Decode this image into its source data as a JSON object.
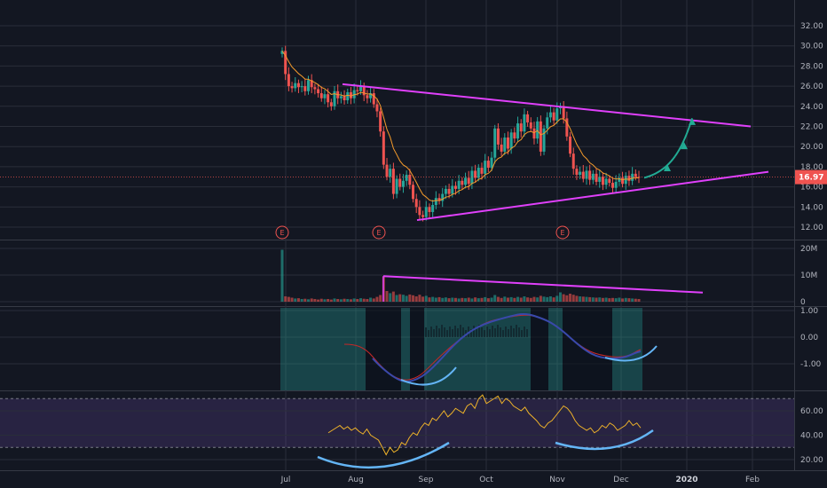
{
  "chart_data": {
    "type": "candlestick",
    "x_ticks": [
      "Jul",
      "Aug",
      "Sep",
      "Oct",
      "Nov",
      "Dec",
      "2020",
      "Feb"
    ],
    "price_panel": {
      "ylim": [
        11,
        32
      ],
      "y_ticks": [
        "32.00",
        "30.00",
        "28.00",
        "26.00",
        "24.00",
        "22.00",
        "20.00",
        "18.00",
        "16.00",
        "14.00",
        "12.00"
      ],
      "last_price": "16.97",
      "earnings_markers": [
        {
          "label": "E",
          "month": "Jul"
        },
        {
          "label": "E",
          "month": "Aug"
        },
        {
          "label": "E",
          "month": "Nov"
        }
      ],
      "closes": [
        29.5,
        27.2,
        26.0,
        25.8,
        26.3,
        25.9,
        26.0,
        25.5,
        26.6,
        25.9,
        25.7,
        25.3,
        24.8,
        25.2,
        24.4,
        24.0,
        25.5,
        24.8,
        25.0,
        24.6,
        25.4,
        24.8,
        25.6,
        25.5,
        26.0,
        25.1,
        24.8,
        25.3,
        24.2,
        23.5,
        21.5,
        18.2,
        17.0,
        17.8,
        15.3,
        16.8,
        16.0,
        16.6,
        17.2,
        16.2,
        14.8,
        14.0,
        13.2,
        13.0,
        14.0,
        13.5,
        14.2,
        14.9,
        14.6,
        15.3,
        15.8,
        15.3,
        16.1,
        15.8,
        16.6,
        16.2,
        16.9,
        16.3,
        17.6,
        16.9,
        17.9,
        17.3,
        18.6,
        17.9,
        18.9,
        21.8,
        20.2,
        19.5,
        20.9,
        19.8,
        21.4,
        20.8,
        22.3,
        21.5,
        23.2,
        22.4,
        21.8,
        20.8,
        22.5,
        19.5,
        21.8,
        22.9,
        23.4,
        22.6,
        23.8,
        24.0,
        22.8,
        21.0,
        19.3,
        17.8,
        17.2,
        17.5,
        16.8,
        17.6,
        16.7,
        17.3,
        16.5,
        17.0,
        16.2,
        16.8,
        16.4,
        15.9,
        16.5,
        16.9,
        16.3,
        17.1,
        16.6,
        17.3,
        17.0,
        16.97
      ],
      "series": [
        {
          "name": "EMA"
        }
      ]
    },
    "volume_panel": {
      "y_ticks": [
        "20M",
        "10M",
        "0"
      ],
      "values": [
        19.5,
        2.0,
        1.8,
        1.5,
        1.2,
        1.3,
        1.0,
        1.1,
        0.9,
        1.2,
        1.0,
        0.8,
        1.1,
        0.9,
        1.0,
        0.8,
        1.2,
        1.0,
        0.9,
        1.1,
        1.0,
        0.9,
        1.2,
        1.0,
        1.3,
        1.1,
        1.0,
        1.5,
        1.2,
        1.8,
        2.5,
        9.5,
        4.0,
        3.2,
        3.8,
        2.5,
        2.8,
        2.6,
        2.2,
        2.7,
        2.4,
        2.0,
        2.6,
        1.9,
        2.2,
        1.6,
        1.8,
        1.5,
        1.7,
        1.4,
        1.6,
        1.3,
        1.5,
        1.4,
        1.2,
        1.4,
        1.3,
        1.5,
        1.2,
        1.6,
        1.3,
        1.4,
        1.7,
        1.3,
        1.5,
        2.5,
        1.8,
        1.4,
        1.9,
        1.5,
        1.7,
        1.4,
        1.8,
        1.5,
        2.0,
        1.6,
        1.4,
        1.8,
        1.6,
        2.2,
        1.9,
        1.7,
        2.0,
        1.6,
        2.2,
        3.5,
        2.8,
        2.4,
        3.0,
        2.6,
        2.2,
        2.0,
        1.9,
        1.8,
        1.7,
        1.6,
        1.5,
        1.6,
        1.4,
        1.5,
        1.3,
        1.4,
        1.3,
        1.5,
        1.2,
        1.4,
        1.3,
        1.2,
        1.1,
        1.0
      ]
    },
    "oscillator_panel": {
      "y_ticks": [
        "1.00",
        "0.00",
        "-1.00"
      ],
      "ylim": [
        -1.9,
        1.3
      ]
    },
    "rsi_panel": {
      "y_ticks": [
        "60.00",
        "40.00",
        "20.00"
      ],
      "ylim": [
        10,
        76
      ],
      "band": [
        30,
        70
      ]
    }
  }
}
